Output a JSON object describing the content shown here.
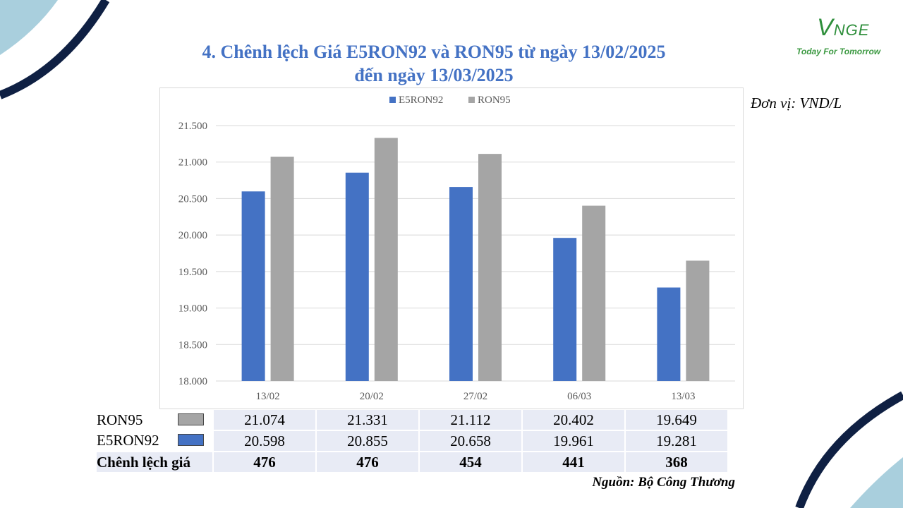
{
  "brand": {
    "logo_letters": "NGE",
    "logo_v": "V",
    "tagline": "Today For Tomorrow"
  },
  "title_line1": "4. Chênh lệch Giá E5RON92 và RON95 từ ngày 13/02/2025",
  "title_line2": "đến ngày 13/03/2025",
  "unit_label": "Đơn vị: VND/L",
  "source_label": "Nguồn: Bộ Công Thương",
  "colors": {
    "e5ron92": "#4472c4",
    "ron95": "#a5a5a5",
    "title": "#4472c4",
    "decor_navy": "#0f2043",
    "decor_lightblue": "#a9cfdd",
    "logo_green": "#2f8f3c"
  },
  "chart_data": {
    "type": "bar",
    "categories": [
      "13/02",
      "20/02",
      "27/02",
      "06/03",
      "13/03"
    ],
    "series": [
      {
        "name": "E5RON92",
        "values": [
          20598,
          20855,
          20658,
          19961,
          19281
        ]
      },
      {
        "name": "RON95",
        "values": [
          21074,
          21331,
          21112,
          20402,
          19649
        ]
      }
    ],
    "ylim": [
      18000,
      21500
    ],
    "yticks": [
      "18.000",
      "18.500",
      "19.000",
      "19.500",
      "20.000",
      "20.500",
      "21.000",
      "21.500"
    ],
    "ytick_values": [
      18000,
      18500,
      19000,
      19500,
      20000,
      20500,
      21000,
      21500
    ],
    "grid": true,
    "legend": "top-center"
  },
  "table": {
    "rows": [
      {
        "label": "RON95",
        "values": [
          "21.074",
          "21.331",
          "21.112",
          "20.402",
          "19.649"
        ]
      },
      {
        "label": "E5RON92",
        "values": [
          "20.598",
          "20.855",
          "20.658",
          "19.961",
          "19.281"
        ]
      },
      {
        "label": "Chênh lệch giá",
        "values": [
          "476",
          "476",
          "454",
          "441",
          "368"
        ]
      }
    ]
  }
}
